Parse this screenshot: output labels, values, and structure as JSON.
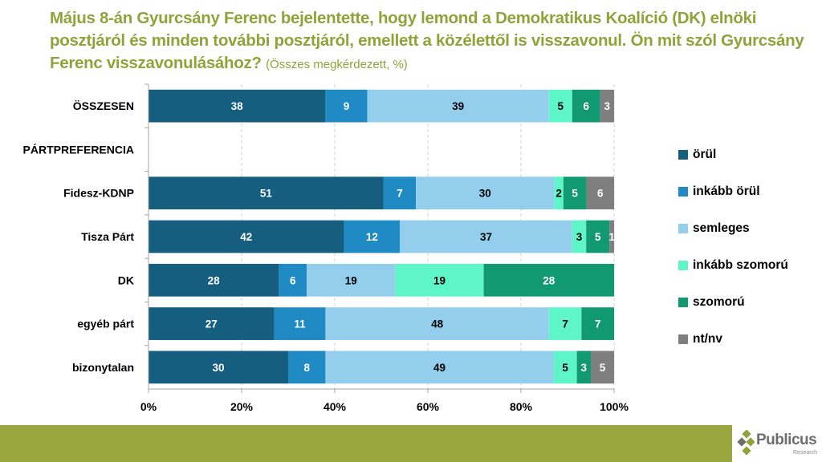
{
  "title": {
    "main": "Május 8-án Gyurcsány Ferenc bejelentette, hogy lemond a Demokratikus Koalíció (DK) elnöki posztjáról és minden további posztjáról, emellett a közélettől is visszavonul. Ön mit szól Gyurcsány Ferenc visszavonulásához?",
    "sub": "(Összes megkérdezett, %)"
  },
  "colors": {
    "title": "#8FA33A",
    "footer": "#9AA63E"
  },
  "branding": {
    "logo_name": "Publicus",
    "logo_sub": "Research",
    "logo_icon": "diamond-cluster-icon"
  },
  "chart_data": {
    "type": "bar",
    "orientation": "horizontal",
    "stacked": "100%",
    "title": "Május 8-án Gyurcsány Ferenc bejelentette, hogy lemond a Demokratikus Koalíció (DK) elnöki posztjáról és minden további posztjáról, emellett a közélettől is visszavonul. Ön mit szól Gyurcsány Ferenc visszavonulásához?",
    "subtitle": "(Összes megkérdezett, %)",
    "xlabel": "",
    "ylabel": "",
    "xlim": [
      0,
      100
    ],
    "x_ticks": [
      "0%",
      "20%",
      "40%",
      "60%",
      "80%",
      "100%"
    ],
    "grid": "vertical dashed",
    "legend_position": "right",
    "categories": [
      "ÖSSZESEN",
      "PÁRTPREFERENCIA",
      "Fidesz-KDNP",
      "Tisza Párt",
      "DK",
      "egyéb párt",
      "bizonytalan"
    ],
    "series": [
      {
        "name": "örül",
        "color": "#165E80",
        "label_color": "#ffffff",
        "values": [
          38,
          null,
          51,
          42,
          28,
          27,
          30
        ]
      },
      {
        "name": "inkább örül",
        "color": "#1F8AC4",
        "label_color": "#ffffff",
        "values": [
          9,
          null,
          7,
          12,
          6,
          11,
          8
        ]
      },
      {
        "name": "semleges",
        "color": "#93CFEC",
        "label_color": "#000000",
        "values": [
          39,
          null,
          30,
          37,
          19,
          48,
          49
        ]
      },
      {
        "name": "inkább szomorú",
        "color": "#5EF5C9",
        "label_color": "#000000",
        "values": [
          5,
          null,
          2,
          3,
          19,
          7,
          5
        ]
      },
      {
        "name": "szomorú",
        "color": "#119A72",
        "label_color": "#ffffff",
        "values": [
          6,
          null,
          5,
          5,
          28,
          7,
          3
        ]
      },
      {
        "name": "nt/nv",
        "color": "#7F7F7F",
        "label_color": "#ffffff",
        "values": [
          3,
          null,
          6,
          1,
          0,
          0,
          5
        ]
      }
    ]
  }
}
